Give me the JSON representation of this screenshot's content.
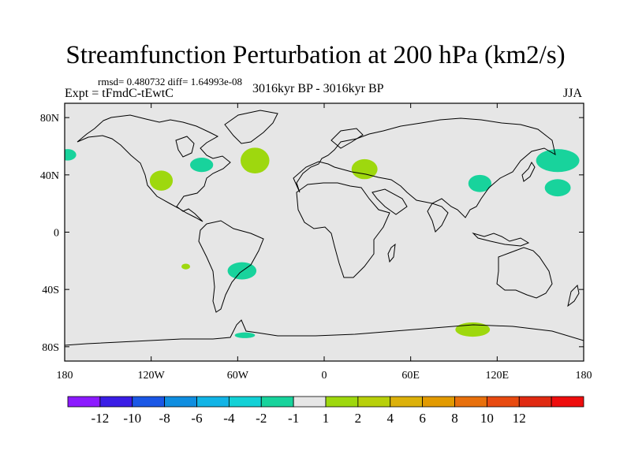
{
  "header": {
    "title": "Streamfunction Perturbation at 200 hPa (km2/s)",
    "stats": "rmsd= 0.480732 diff= 1.64993e-08",
    "experiment": "Expt = tFmdC-tEwtC",
    "period": "3016kyr BP - 3016kyr BP",
    "season": "JJA"
  },
  "chart_data": {
    "type": "heatmap",
    "title": "Streamfunction Perturbation at 200 hPa (km2/s)",
    "projection": "cylindrical-equidistant",
    "xlim": [
      -180,
      180
    ],
    "ylim": [
      -90,
      90
    ],
    "x_ticks": [
      {
        "value": -180,
        "label": "180"
      },
      {
        "value": -120,
        "label": "120W"
      },
      {
        "value": -60,
        "label": "60W"
      },
      {
        "value": 0,
        "label": "0"
      },
      {
        "value": 60,
        "label": "60E"
      },
      {
        "value": 120,
        "label": "120E"
      },
      {
        "value": 180,
        "label": "180"
      }
    ],
    "y_ticks": [
      {
        "value": 80,
        "label": "80N"
      },
      {
        "value": 40,
        "label": "40N"
      },
      {
        "value": 0,
        "label": "0"
      },
      {
        "value": -40,
        "label": "40S"
      },
      {
        "value": -80,
        "label": "80S"
      }
    ],
    "background_color": "#e6e6e6",
    "anomaly_regions": [
      {
        "name": "north-atlantic-positive",
        "lon": -48,
        "lat": 50,
        "rlon": 10,
        "rlat": 9,
        "bin": "1 to 2",
        "color": "#9ed80e"
      },
      {
        "name": "great-lakes-negative",
        "lon": -85,
        "lat": 47,
        "rlon": 8,
        "rlat": 5,
        "bin": "-2 to -1",
        "color": "#18d39c"
      },
      {
        "name": "western-us-positive",
        "lon": -113,
        "lat": 36,
        "rlon": 8,
        "rlat": 7,
        "bin": "1 to 2",
        "color": "#9ed80e"
      },
      {
        "name": "north-pacific-west-negative",
        "lon": -178,
        "lat": 54,
        "rlon": 6,
        "rlat": 4,
        "bin": "-2 to -1",
        "color": "#18d39c"
      },
      {
        "name": "black-sea-positive",
        "lon": 28,
        "lat": 44,
        "rlon": 9,
        "rlat": 7,
        "bin": "1 to 2",
        "color": "#9ed80e"
      },
      {
        "name": "central-asia-negative",
        "lon": 108,
        "lat": 34,
        "rlon": 8,
        "rlat": 6,
        "bin": "-2 to -1",
        "color": "#18d39c"
      },
      {
        "name": "northwest-pacific-negative",
        "lon": 162,
        "lat": 50,
        "rlon": 15,
        "rlat": 8,
        "bin": "-2 to -1",
        "color": "#18d39c"
      },
      {
        "name": "japan-east-negative",
        "lon": 162,
        "lat": 31,
        "rlon": 9,
        "rlat": 6,
        "bin": "-2 to -1",
        "color": "#18d39c"
      },
      {
        "name": "south-america-negative",
        "lon": -57,
        "lat": -27,
        "rlon": 10,
        "rlat": 6,
        "bin": "-2 to -1",
        "color": "#18d39c"
      },
      {
        "name": "southeast-pacific-positive",
        "lon": -96,
        "lat": -24,
        "rlon": 3,
        "rlat": 2,
        "bin": "1 to 2",
        "color": "#9ed80e"
      },
      {
        "name": "antarctic-peninsula-negative",
        "lon": -55,
        "lat": -72,
        "rlon": 7,
        "rlat": 2,
        "bin": "-2 to -1",
        "color": "#18d39c"
      },
      {
        "name": "east-antarctica-positive",
        "lon": 103,
        "lat": -68,
        "rlon": 12,
        "rlat": 5,
        "bin": "1 to 2",
        "color": "#9ed80e"
      }
    ],
    "colorbar": {
      "colors": [
        "#8c1aff",
        "#3a1de6",
        "#1a57e6",
        "#0f8ee0",
        "#12b4e6",
        "#13d1d6",
        "#18d39c",
        "#e6e6e6",
        "#9ed80e",
        "#b8d00a",
        "#dcb10a",
        "#e29a00",
        "#e8700c",
        "#e84a10",
        "#e02a12",
        "#ee0d0d"
      ],
      "labels": [
        "-12",
        "-10",
        "-8",
        "-6",
        "-4",
        "-2",
        "-1",
        "1",
        "2",
        "4",
        "6",
        "8",
        "10",
        "12"
      ]
    }
  }
}
